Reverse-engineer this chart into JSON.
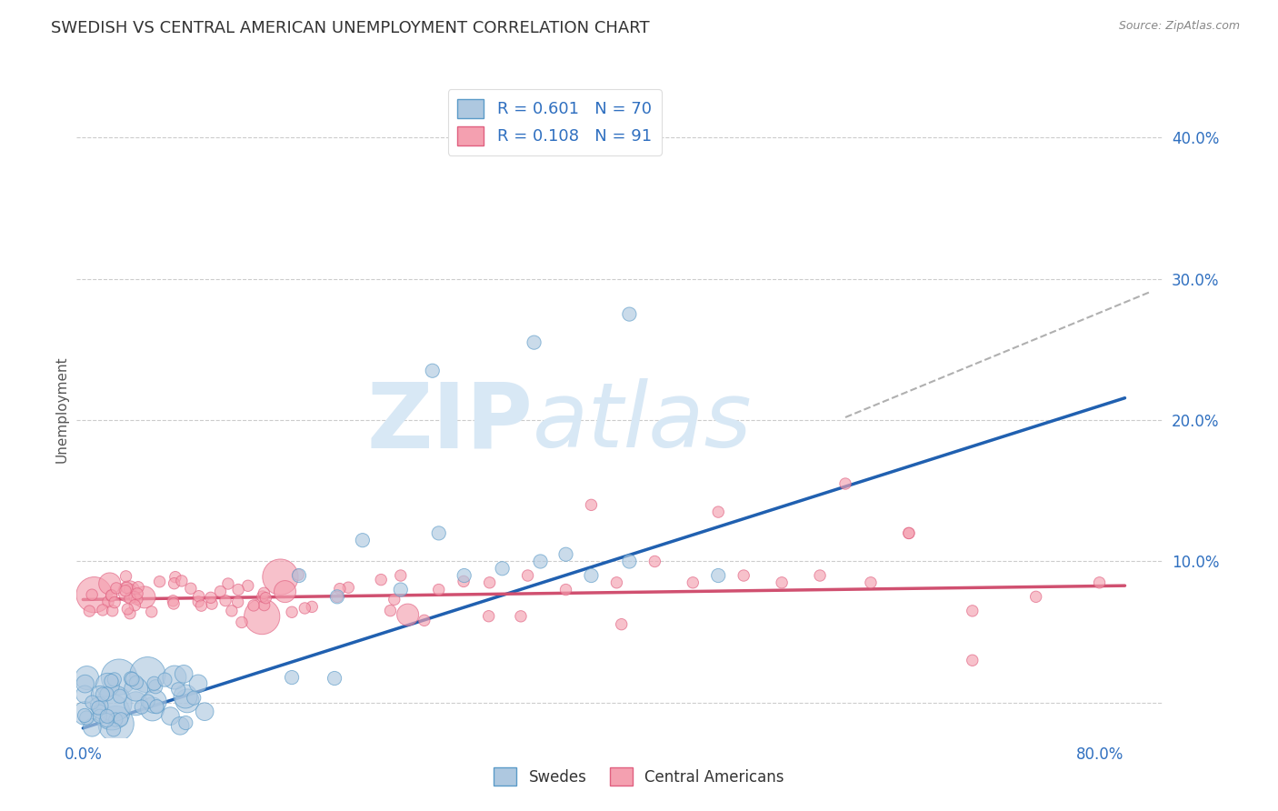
{
  "title": "SWEDISH VS CENTRAL AMERICAN UNEMPLOYMENT CORRELATION CHART",
  "source": "Source: ZipAtlas.com",
  "ylabel": "Unemployment",
  "xlim": [
    -0.005,
    0.85
  ],
  "ylim": [
    -0.025,
    0.44
  ],
  "blue_fill_color": "#aec8e0",
  "blue_edge_color": "#5b9bc8",
  "pink_fill_color": "#f4a0b0",
  "pink_edge_color": "#e06080",
  "blue_line_color": "#2060b0",
  "pink_line_color": "#d05070",
  "dashed_color": "#b0b0b0",
  "legend_blue_label": "R = 0.601   N = 70",
  "legend_pink_label": "R = 0.108   N = 91",
  "legend_label_color": "#3070c0",
  "background_color": "#ffffff",
  "grid_color": "#cccccc",
  "watermark_zip": "ZIP",
  "watermark_atlas": "atlas",
  "watermark_color": "#d8e8f5",
  "blue_intercept": -0.018,
  "blue_slope": 0.285,
  "pink_intercept": 0.073,
  "pink_slope": 0.012,
  "dashed_slope": 0.37,
  "dashed_intercept": -0.02,
  "legend_bottom_labels": [
    "Swedes",
    "Central Americans"
  ],
  "title_fontsize": 13,
  "axis_fontsize": 11,
  "tick_fontsize": 12,
  "dot_size_blue": 120,
  "dot_size_pink": 80,
  "dot_size_large": 800
}
